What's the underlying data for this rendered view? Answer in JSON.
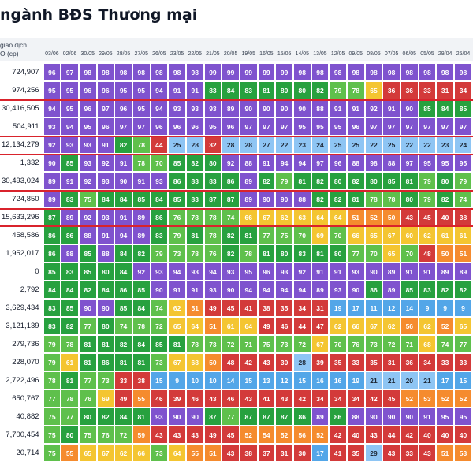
{
  "title": "ngành BĐS Thương mại",
  "volume_header": "giao dịch\nO (cp)",
  "dates": [
    "03/06",
    "02/06",
    "30/05",
    "29/05",
    "28/05",
    "27/05",
    "26/05",
    "23/05",
    "22/05",
    "21/05",
    "20/05",
    "19/05",
    "16/05",
    "15/05",
    "14/05",
    "13/05",
    "12/05",
    "09/05",
    "08/05",
    "07/05",
    "06/05",
    "05/05",
    "29/04",
    "25/04"
  ],
  "colors": {
    "purple": "#7f53ce",
    "green": "#27a13f",
    "lightgreen": "#5fc04c",
    "yellow": "#f4c531",
    "orange": "#f58b2e",
    "red": "#d33a3a",
    "blue": "#53a6e8",
    "lightblue": "#8ec5f4"
  },
  "rows": [
    {
      "volume": "724,907",
      "values": [
        96,
        97,
        98,
        98,
        98,
        98,
        98,
        98,
        98,
        99,
        99,
        99,
        99,
        99,
        98,
        98,
        98,
        98,
        98,
        98,
        98,
        98,
        98,
        98
      ]
    },
    {
      "volume": "974,256",
      "values": [
        95,
        95,
        96,
        96,
        95,
        95,
        94,
        91,
        91,
        83,
        84,
        83,
        81,
        80,
        80,
        82,
        79,
        78,
        65,
        36,
        36,
        33,
        31,
        34
      ]
    },
    {
      "volume": "30,416,505",
      "values": [
        94,
        95,
        96,
        97,
        96,
        95,
        94,
        93,
        93,
        93,
        89,
        90,
        90,
        90,
        90,
        88,
        91,
        91,
        92,
        91,
        90,
        85,
        84,
        85
      ]
    },
    {
      "volume": "504,911",
      "values": [
        93,
        94,
        95,
        96,
        97,
        97,
        96,
        96,
        96,
        95,
        96,
        97,
        97,
        97,
        95,
        95,
        95,
        96,
        97,
        97,
        97,
        97,
        97,
        97
      ]
    },
    {
      "volume": "12,134,279",
      "values": [
        92,
        93,
        93,
        91,
        82,
        78,
        44,
        25,
        28,
        32,
        28,
        28,
        27,
        22,
        23,
        24,
        25,
        25,
        22,
        25,
        22,
        22,
        23,
        24
      ]
    },
    {
      "volume": "1,332",
      "values": [
        90,
        85,
        93,
        92,
        91,
        78,
        70,
        85,
        82,
        80,
        92,
        88,
        91,
        94,
        94,
        97,
        96,
        88,
        98,
        88,
        97,
        95,
        95,
        95
      ]
    },
    {
      "volume": "30,493,024",
      "values": [
        89,
        91,
        92,
        93,
        90,
        91,
        93,
        86,
        83,
        83,
        86,
        89,
        82,
        79,
        81,
        82,
        80,
        82,
        80,
        85,
        81,
        79,
        80,
        79
      ]
    },
    {
      "volume": "724,850",
      "values": [
        89,
        83,
        75,
        84,
        84,
        85,
        84,
        85,
        83,
        87,
        87,
        89,
        90,
        90,
        88,
        82,
        82,
        81,
        78,
        78,
        80,
        79,
        82,
        74
      ]
    },
    {
      "volume": "15,633,296",
      "values": [
        87,
        89,
        92,
        93,
        91,
        89,
        86,
        76,
        78,
        78,
        74,
        66,
        67,
        62,
        63,
        64,
        64,
        51,
        52,
        50,
        43,
        45,
        40,
        38
      ]
    },
    {
      "volume": "458,586",
      "values": [
        86,
        86,
        88,
        91,
        94,
        89,
        83,
        79,
        81,
        78,
        82,
        81,
        77,
        75,
        70,
        69,
        70,
        66,
        65,
        67,
        60,
        62,
        61,
        61
      ]
    },
    {
      "volume": "1,952,017",
      "values": [
        86,
        88,
        85,
        88,
        84,
        82,
        79,
        73,
        78,
        76,
        82,
        78,
        81,
        80,
        83,
        81,
        80,
        77,
        70,
        65,
        70,
        48,
        50,
        51
      ]
    },
    {
      "volume": "0",
      "values": [
        85,
        83,
        85,
        80,
        84,
        92,
        93,
        94,
        93,
        94,
        93,
        95,
        96,
        93,
        92,
        91,
        91,
        93,
        90,
        89,
        91,
        91,
        89,
        89
      ]
    },
    {
      "volume": "2,792",
      "values": [
        84,
        84,
        82,
        84,
        86,
        85,
        90,
        91,
        91,
        93,
        90,
        94,
        94,
        94,
        94,
        89,
        93,
        90,
        86,
        89,
        85,
        83,
        82,
        82
      ]
    },
    {
      "volume": "3,629,434",
      "values": [
        83,
        85,
        90,
        90,
        85,
        84,
        74,
        62,
        51,
        49,
        45,
        41,
        38,
        35,
        34,
        31,
        19,
        17,
        11,
        12,
        14,
        9,
        9,
        9
      ]
    },
    {
      "volume": "3,121,139",
      "values": [
        83,
        82,
        77,
        80,
        74,
        78,
        72,
        65,
        64,
        51,
        61,
        64,
        49,
        46,
        44,
        47,
        62,
        66,
        67,
        62,
        56,
        62,
        52,
        65
      ]
    },
    {
      "volume": "279,736",
      "values": [
        79,
        78,
        81,
        81,
        82,
        84,
        85,
        81,
        78,
        73,
        72,
        71,
        75,
        73,
        72,
        67,
        70,
        76,
        73,
        72,
        71,
        68,
        74,
        77
      ]
    },
    {
      "volume": "228,070",
      "values": [
        79,
        61,
        81,
        86,
        81,
        81,
        73,
        67,
        68,
        50,
        48,
        42,
        43,
        30,
        28,
        39,
        35,
        33,
        35,
        31,
        36,
        34,
        33,
        33
      ]
    },
    {
      "volume": "2,722,496",
      "values": [
        78,
        81,
        77,
        73,
        33,
        38,
        15,
        9,
        10,
        10,
        14,
        15,
        13,
        12,
        15,
        16,
        16,
        19,
        21,
        21,
        20,
        21,
        17,
        15
      ]
    },
    {
      "volume": "650,767",
      "values": [
        77,
        78,
        76,
        69,
        49,
        55,
        46,
        39,
        46,
        43,
        46,
        43,
        41,
        43,
        42,
        34,
        34,
        34,
        42,
        45,
        52,
        53,
        52,
        52
      ]
    },
    {
      "volume": "40,882",
      "values": [
        75,
        77,
        80,
        82,
        84,
        81,
        93,
        90,
        90,
        87,
        77,
        87,
        87,
        87,
        86,
        89,
        86,
        88,
        90,
        90,
        90,
        91,
        95,
        95
      ]
    },
    {
      "volume": "7,700,454",
      "values": [
        75,
        80,
        75,
        76,
        72,
        59,
        43,
        43,
        43,
        49,
        45,
        52,
        54,
        52,
        56,
        52,
        42,
        40,
        43,
        44,
        42,
        40,
        40,
        40
      ]
    },
    {
      "volume": "20,714",
      "values": [
        75,
        55,
        65,
        67,
        62,
        66,
        73,
        64,
        55,
        51,
        43,
        38,
        37,
        31,
        30,
        17,
        41,
        35,
        29,
        43,
        33,
        43,
        51,
        53
      ]
    }
  ]
}
